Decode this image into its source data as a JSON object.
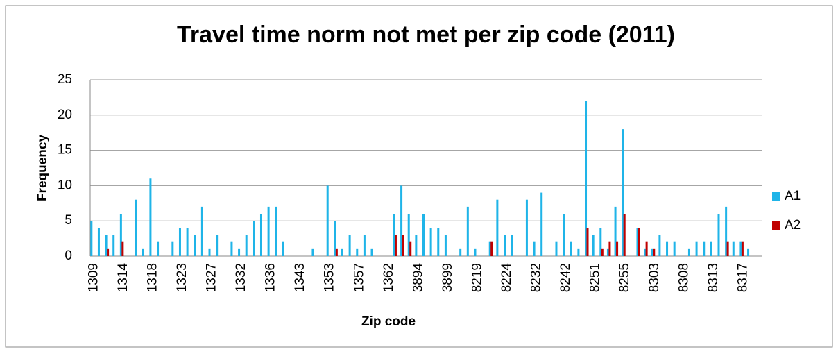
{
  "chart_data": {
    "type": "bar",
    "title": "Travel time norm not met per zip code (2011)",
    "x_label": "Zip code",
    "y_label": "Frequency",
    "categories": [
      "1309",
      null,
      null,
      null,
      "1314",
      null,
      null,
      null,
      "1318",
      null,
      null,
      null,
      "1323",
      null,
      null,
      null,
      "1327",
      null,
      null,
      null,
      "1332",
      null,
      null,
      null,
      "1336",
      null,
      null,
      null,
      "1343",
      null,
      null,
      null,
      "1353",
      null,
      null,
      null,
      "1357",
      null,
      null,
      null,
      "1362",
      null,
      null,
      null,
      "3894",
      null,
      null,
      null,
      "3899",
      null,
      null,
      null,
      "8219",
      null,
      null,
      null,
      "8224",
      null,
      null,
      null,
      "8232",
      null,
      null,
      null,
      "8242",
      null,
      null,
      null,
      "8251",
      null,
      null,
      null,
      "8255",
      null,
      null,
      null,
      "8303",
      null,
      null,
      null,
      "8308",
      null,
      null,
      null,
      "8313",
      null,
      null,
      null,
      "8317",
      null,
      null
    ],
    "series": [
      {
        "name": "A1",
        "color": "#1fb4e8",
        "values": [
          5,
          4,
          3,
          3,
          6,
          0,
          8,
          1,
          11,
          2,
          0,
          2,
          4,
          4,
          3,
          7,
          1,
          3,
          0,
          2,
          1,
          3,
          5,
          6,
          7,
          7,
          2,
          0,
          0,
          0,
          1,
          0,
          10,
          5,
          1,
          3,
          1,
          3,
          1,
          0,
          0,
          6,
          10,
          6,
          3,
          6,
          4,
          4,
          3,
          0,
          1,
          7,
          1,
          0,
          2,
          8,
          3,
          3,
          0,
          8,
          2,
          9,
          0,
          2,
          6,
          2,
          1,
          22,
          3,
          4,
          1,
          7,
          18,
          0,
          4,
          1,
          1,
          3,
          2,
          2,
          0,
          1,
          2,
          2,
          2,
          6,
          7,
          2,
          2,
          1,
          0
        ]
      },
      {
        "name": "A2",
        "color": "#c00000",
        "values": [
          0,
          0,
          1,
          0,
          2,
          0,
          0,
          0,
          0,
          0,
          0,
          0,
          0,
          0,
          0,
          0,
          0,
          0,
          0,
          0,
          0,
          0,
          0,
          0,
          0,
          0,
          0,
          0,
          0,
          0,
          0,
          0,
          0,
          1,
          0,
          0,
          0,
          0,
          0,
          0,
          0,
          3,
          3,
          2,
          0,
          0,
          0,
          0,
          0,
          0,
          0,
          0,
          0,
          0,
          2,
          0,
          0,
          0,
          0,
          0,
          0,
          0,
          0,
          0,
          0,
          0,
          0,
          4,
          0,
          1,
          2,
          2,
          6,
          0,
          4,
          2,
          1,
          0,
          0,
          0,
          0,
          0,
          0,
          0,
          0,
          0,
          2,
          0,
          2,
          0,
          0
        ]
      }
    ],
    "ylim": [
      0,
      25
    ],
    "yticks": [
      0,
      5,
      10,
      15,
      20,
      25
    ],
    "grid": true,
    "legend": "right"
  }
}
